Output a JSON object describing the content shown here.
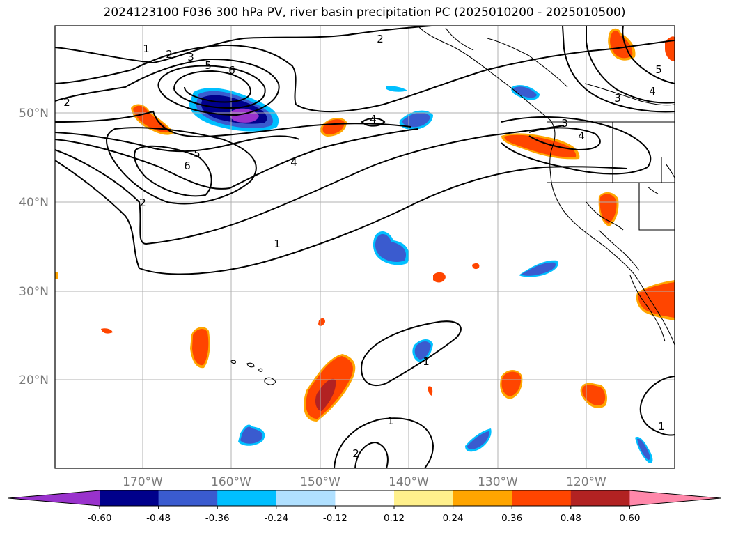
{
  "title": "2024123100 F036 300 hPa PV, river basin precipitation PC (2025010200 - 2025010500)",
  "map": {
    "lat_labels": [
      "50°N",
      "40°N",
      "30°N",
      "20°N"
    ],
    "lon_labels": [
      "170°W",
      "160°W",
      "150°W",
      "140°W",
      "130°W",
      "120°W"
    ],
    "pv_contour_labels": [
      "1",
      "2",
      "3",
      "5",
      "6",
      "2",
      "5",
      "6",
      "4",
      "4",
      "1",
      "2",
      "2",
      "4",
      "5",
      "3",
      "4",
      "3",
      "1",
      "1",
      "2",
      "1"
    ]
  },
  "colorbar": {
    "levels": [
      "-0.60",
      "-0.48",
      "-0.36",
      "-0.24",
      "-0.12",
      "0.12",
      "0.24",
      "0.36",
      "0.48",
      "0.60"
    ],
    "colors": [
      "#9932cc",
      "#00008b",
      "#3a5bcf",
      "#00bfff",
      "#b0e0ff",
      "#ffffff",
      "#fff08c",
      "#ffa500",
      "#ff4500",
      "#b22222",
      "#ff88aa"
    ]
  }
}
